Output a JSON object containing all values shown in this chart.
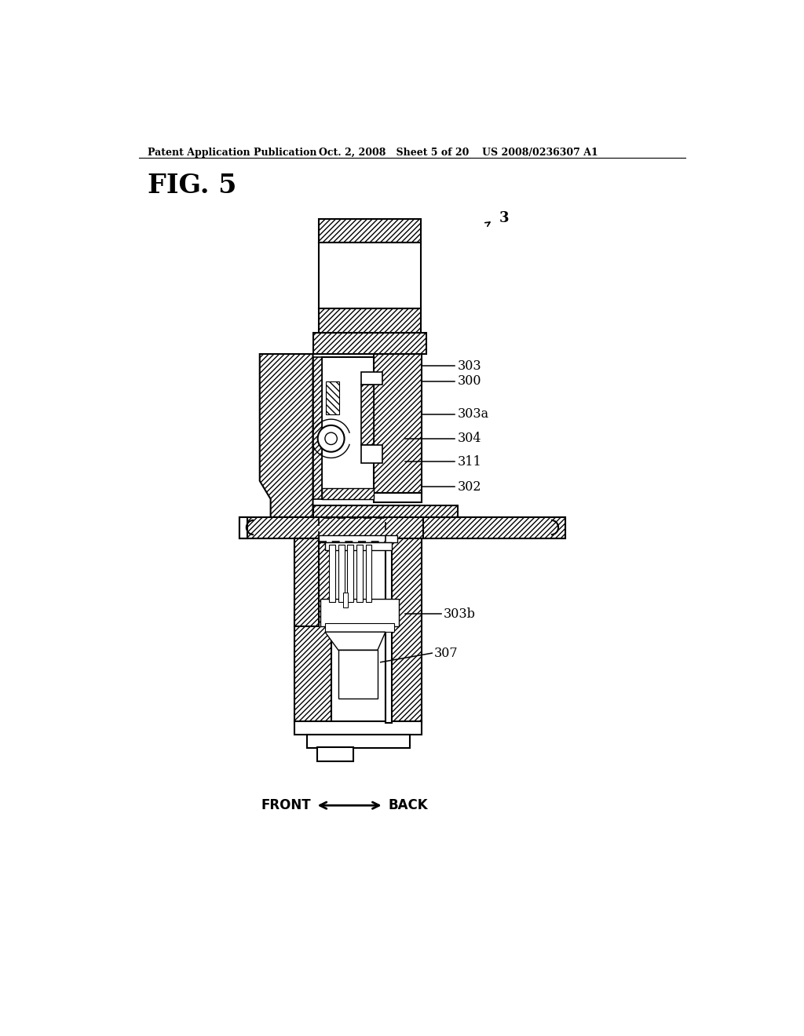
{
  "background_color": "#ffffff",
  "header_left": "Patent Application Publication",
  "header_mid": "Oct. 2, 2008   Sheet 5 of 20",
  "header_right": "US 2008/0236307 A1",
  "fig_label": "FIG. 5",
  "line_color": "#000000",
  "line_width": 1.5
}
